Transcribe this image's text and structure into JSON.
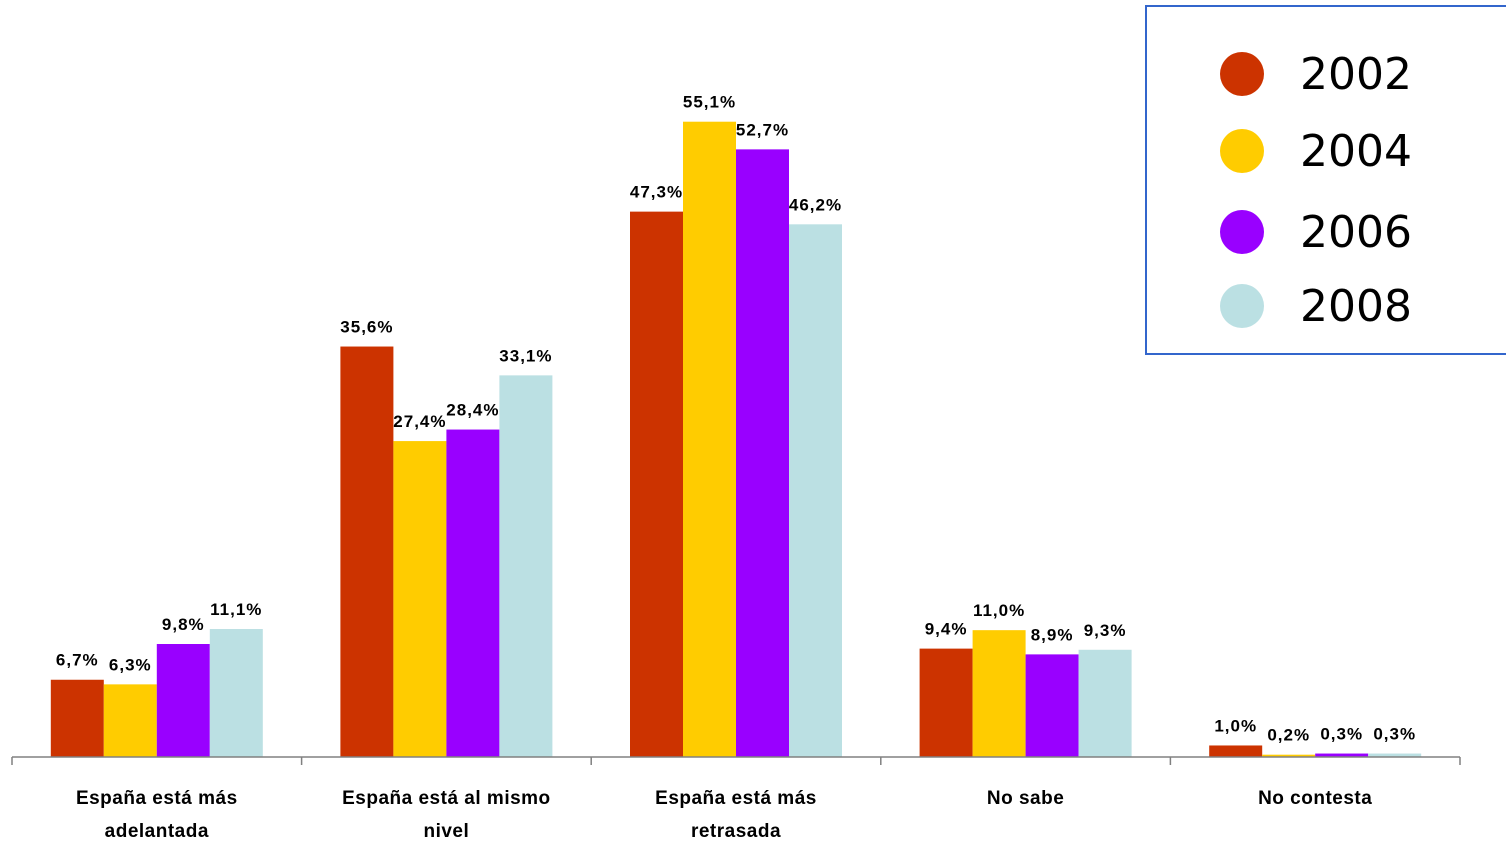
{
  "chart_data": {
    "type": "bar",
    "title": "",
    "xlabel": "",
    "ylabel": "",
    "ylim": [
      0,
      60
    ],
    "grid": false,
    "legend_position": "top-right",
    "categories": [
      [
        "España está más",
        "adelantada"
      ],
      [
        "España está al mismo",
        "nivel"
      ],
      [
        "España está más",
        "retrasada"
      ],
      [
        "No sabe"
      ],
      [
        "No contesta"
      ]
    ],
    "series": [
      {
        "name": "2002",
        "color": "#CC3300",
        "values": [
          6.7,
          35.6,
          47.3,
          9.4,
          1.0
        ],
        "labels": [
          "6,7%",
          "35,6%",
          "47,3%",
          "9,4%",
          "1,0%"
        ]
      },
      {
        "name": "2004",
        "color": "#FFCC00",
        "values": [
          6.3,
          27.4,
          55.1,
          11.0,
          0.2
        ],
        "labels": [
          "6,3%",
          "27,4%",
          "55,1%",
          "11,0%",
          "0,2%"
        ]
      },
      {
        "name": "2006",
        "color": "#9900FF",
        "values": [
          9.8,
          28.4,
          52.7,
          8.9,
          0.3
        ],
        "labels": [
          "9,8%",
          "28,4%",
          "52,7%",
          "8,9%",
          "0,3%"
        ]
      },
      {
        "name": "2008",
        "color": "#BBE0E3",
        "values": [
          11.1,
          33.1,
          46.2,
          9.3,
          0.3
        ],
        "labels": [
          "11,1%",
          "33,1%",
          "46,2%",
          "9,3%",
          "0,3%"
        ]
      }
    ]
  },
  "legend": {
    "border_color": "#3366CC"
  }
}
